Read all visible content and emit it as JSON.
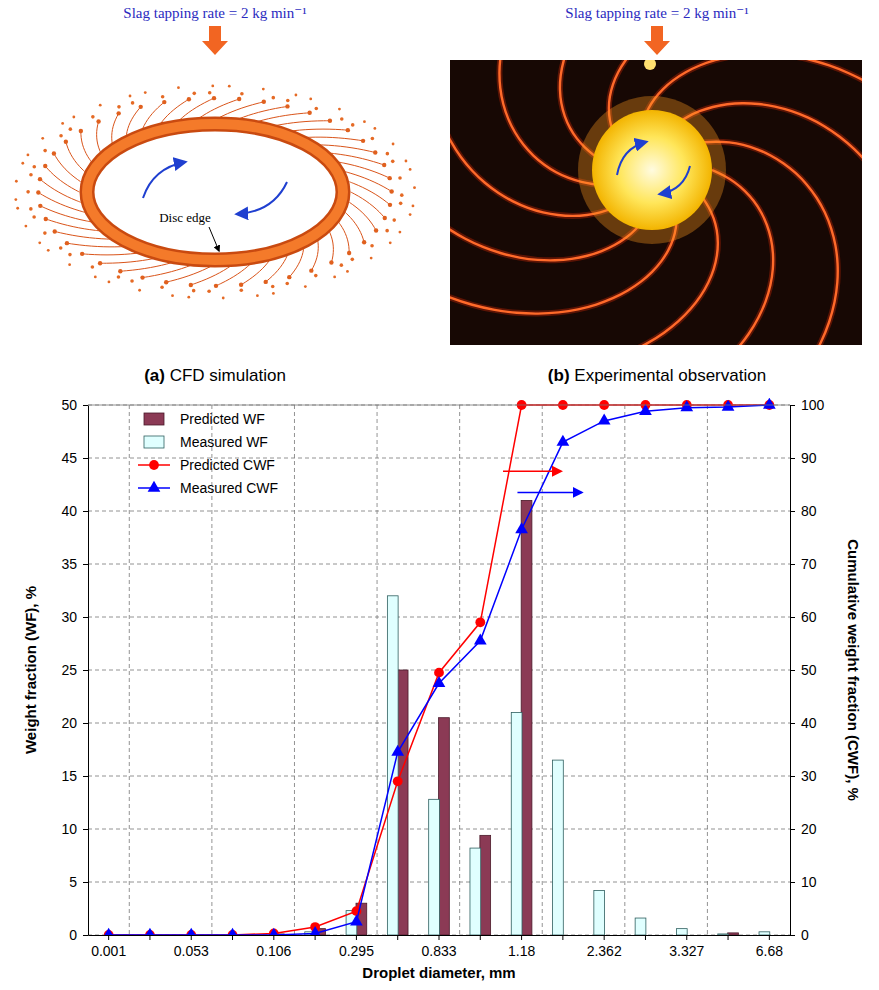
{
  "panels": [
    {
      "header": "Slag tapping rate = 2 kg min⁻¹",
      "caption": "(a) CFD simulation",
      "annotation": "Disc edge"
    },
    {
      "header": "Slag tapping rate = 2 kg min⁻¹",
      "caption": "(b) Experimental observation"
    }
  ],
  "chart_data": {
    "type": "bar",
    "x_label": "Droplet diameter, mm",
    "y_label": "Weight fraction (WF), %",
    "y2_label": "Cumulative weight fraction (CWF), %",
    "categories": [
      "0.001",
      null,
      "0.053",
      null,
      "0.106",
      null,
      "0.295",
      null,
      "0.833",
      null,
      "1.18",
      null,
      "2.362",
      null,
      "3.327",
      null,
      "6.68"
    ],
    "series": [
      {
        "name": "Predicted WF",
        "type": "bar",
        "color": "#8b3a55",
        "values": [
          0,
          0,
          0,
          0,
          0.1,
          0.6,
          3,
          25,
          20.5,
          9.4,
          41,
          0,
          0,
          0,
          0,
          0.2,
          0
        ]
      },
      {
        "name": "Measured WF",
        "type": "bar",
        "color": "#e0ffff",
        "values": [
          0,
          0,
          0,
          0,
          0,
          0.3,
          2.3,
          32,
          12.8,
          8.2,
          21,
          16.5,
          4.2,
          1.6,
          0.6,
          0.1,
          0.3
        ]
      },
      {
        "name": "Predicted CWF",
        "type": "line",
        "axis": "y2",
        "color": "#ff0000",
        "marker": "circle",
        "values": [
          0,
          0,
          0,
          0,
          0.3,
          1.5,
          4.5,
          29,
          49.5,
          59,
          100,
          100,
          100,
          100,
          100,
          100,
          100
        ]
      },
      {
        "name": "Measured CWF",
        "type": "line",
        "axis": "y2",
        "color": "#0000ff",
        "marker": "triangle",
        "values": [
          0,
          0,
          0,
          0,
          0,
          0.3,
          2.5,
          34.5,
          47.5,
          55.5,
          76.5,
          93,
          97,
          98.8,
          99.5,
          99.6,
          100
        ]
      }
    ],
    "ylim": [
      0,
      50
    ],
    "yticks": [
      0,
      5,
      10,
      15,
      20,
      25,
      30,
      35,
      40,
      45,
      50
    ],
    "y2lim": [
      0,
      100
    ],
    "y2ticks": [
      0,
      10,
      20,
      30,
      40,
      50,
      60,
      70,
      80,
      90,
      100
    ],
    "grid": true,
    "legend": "upper left"
  }
}
